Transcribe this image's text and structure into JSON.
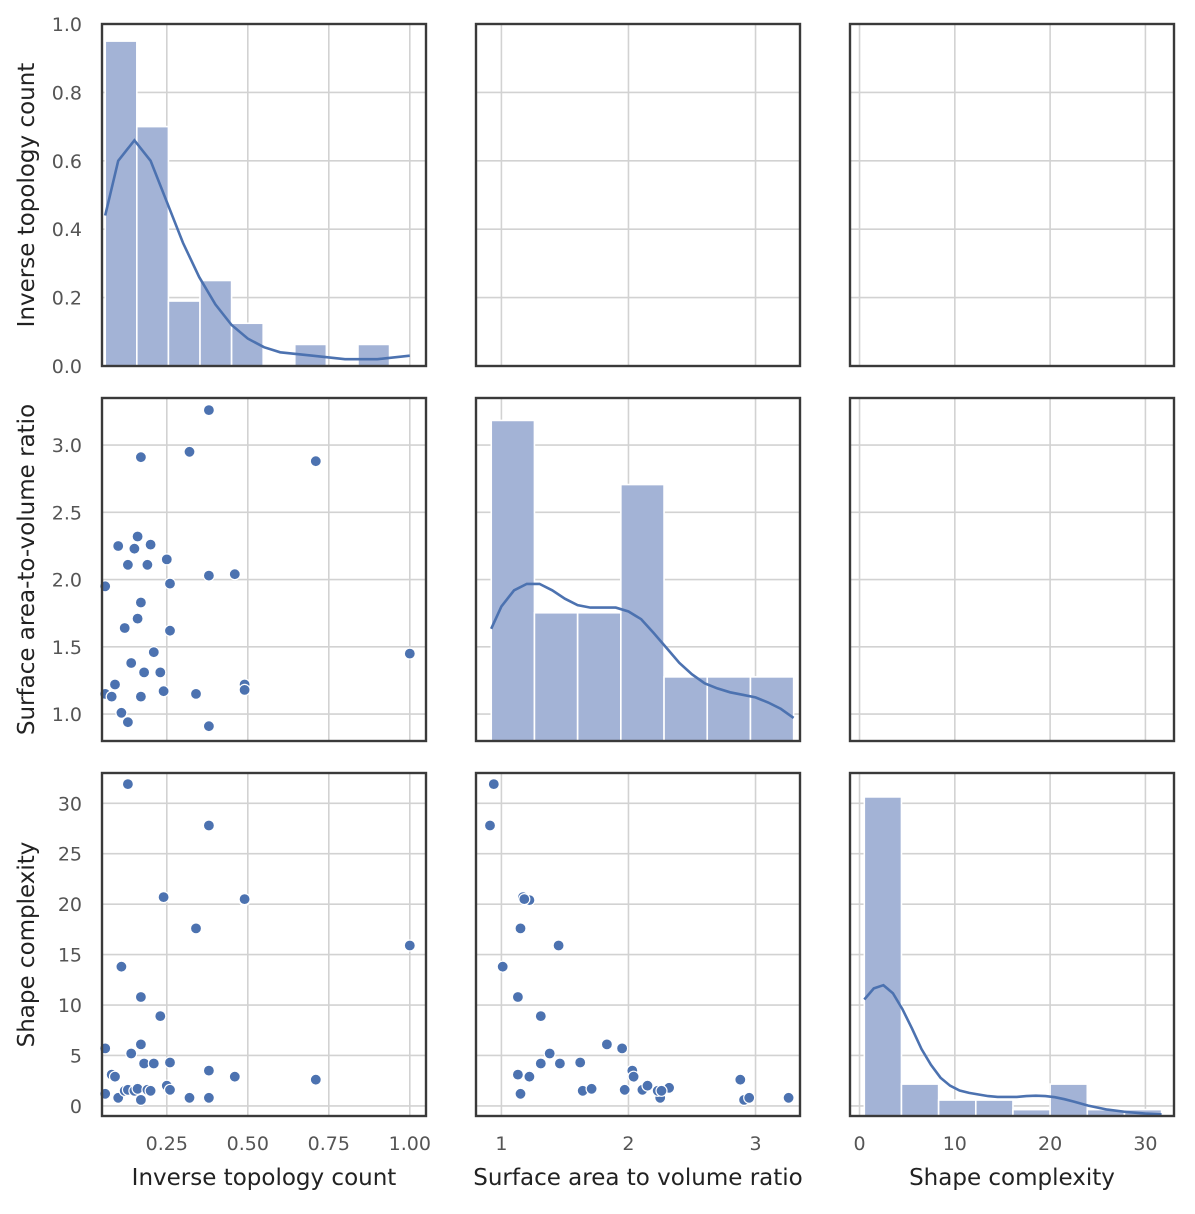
{
  "colors": {
    "series": "#4c72b0",
    "bar_fill": "#a3b3d6",
    "grid": "#d2d2d2",
    "frame": "#3a3a3a"
  },
  "variables": [
    {
      "key": "itc",
      "label": "Inverse topology count"
    },
    {
      "key": "sav",
      "label": "Surface area to volume ratio"
    },
    {
      "key": "sc",
      "label": "Shape complexity"
    }
  ],
  "row_labels": [
    "Inverse topology count",
    "Surface area-to-volume ratio",
    "Shape complexity"
  ],
  "chart_data": {
    "type": "scatter",
    "layout": "pairplot-lower-triangle",
    "grid": true,
    "axes": {
      "itc": {
        "range": [
          0.05,
          1.05
        ],
        "ticks": [
          0.25,
          0.5,
          0.75,
          1.0
        ],
        "tick_labels": [
          "0.25",
          "0.50",
          "0.75",
          "1.00"
        ],
        "diag_ylim": [
          0,
          1.0
        ],
        "diag_yticks": [
          0.0,
          0.2,
          0.4,
          0.6,
          0.8,
          1.0
        ],
        "diag_ytick_labels": [
          "0.0",
          "0.2",
          "0.4",
          "0.6",
          "0.8",
          "1.0"
        ]
      },
      "sav": {
        "range": [
          0.8,
          3.35
        ],
        "ticks": [
          1,
          2,
          3
        ],
        "tick_labels": [
          "1",
          "2",
          "3"
        ],
        "row_ticks": [
          1.0,
          1.5,
          2.0,
          2.5,
          3.0
        ],
        "row_tick_labels": [
          "1.0",
          "1.5",
          "2.0",
          "2.5",
          "3.0"
        ]
      },
      "sc": {
        "range": [
          -1,
          33
        ],
        "ticks": [
          0,
          10,
          20,
          30
        ],
        "tick_labels": [
          "0",
          "10",
          "20",
          "30"
        ],
        "row_ticks": [
          0,
          5,
          10,
          15,
          20,
          25,
          30
        ],
        "row_tick_labels": [
          "0",
          "5",
          "10",
          "15",
          "20",
          "25",
          "30"
        ]
      }
    },
    "histograms": {
      "itc": {
        "edges": [
          0.06,
          0.1575,
          0.255,
          0.3525,
          0.45,
          0.5475,
          0.645,
          0.7425,
          0.84,
          0.9375,
          1.035
        ],
        "heights": [
          0.95,
          0.7,
          0.19,
          0.25,
          0.125,
          0,
          0.063,
          0,
          0.063,
          0
        ],
        "kde": [
          [
            0.06,
            0.44
          ],
          [
            0.1,
            0.6
          ],
          [
            0.15,
            0.66
          ],
          [
            0.2,
            0.6
          ],
          [
            0.25,
            0.48
          ],
          [
            0.3,
            0.36
          ],
          [
            0.35,
            0.26
          ],
          [
            0.4,
            0.18
          ],
          [
            0.45,
            0.12
          ],
          [
            0.5,
            0.08
          ],
          [
            0.55,
            0.055
          ],
          [
            0.6,
            0.04
          ],
          [
            0.7,
            0.03
          ],
          [
            0.8,
            0.02
          ],
          [
            0.9,
            0.02
          ],
          [
            1.0,
            0.03
          ]
        ]
      },
      "sav": {
        "edges": [
          0.92,
          1.26,
          1.6,
          1.94,
          2.28,
          2.62,
          2.96,
          3.3
        ],
        "heights": [
          5,
          2,
          2,
          4,
          1,
          1,
          1
        ],
        "kde": [
          [
            0.92,
            1.75
          ],
          [
            1.0,
            2.1
          ],
          [
            1.1,
            2.35
          ],
          [
            1.2,
            2.45
          ],
          [
            1.3,
            2.45
          ],
          [
            1.4,
            2.35
          ],
          [
            1.5,
            2.22
          ],
          [
            1.6,
            2.12
          ],
          [
            1.7,
            2.08
          ],
          [
            1.8,
            2.08
          ],
          [
            1.9,
            2.08
          ],
          [
            2.0,
            2.02
          ],
          [
            2.1,
            1.9
          ],
          [
            2.2,
            1.68
          ],
          [
            2.3,
            1.45
          ],
          [
            2.4,
            1.22
          ],
          [
            2.5,
            1.04
          ],
          [
            2.6,
            0.9
          ],
          [
            2.7,
            0.82
          ],
          [
            2.8,
            0.76
          ],
          [
            2.9,
            0.72
          ],
          [
            3.0,
            0.68
          ],
          [
            3.1,
            0.6
          ],
          [
            3.2,
            0.5
          ],
          [
            3.3,
            0.36
          ]
        ],
        "ymax": 5.35
      },
      "sc": {
        "edges": [
          0.5,
          4.4,
          8.3,
          12.2,
          16.1,
          20.0,
          23.9,
          27.8,
          31.7
        ],
        "heights": [
          20,
          2,
          1,
          1,
          0.4,
          2,
          0.4,
          0.4
        ],
        "kde": [
          [
            0.5,
            7.3
          ],
          [
            1.5,
            8.0
          ],
          [
            2.5,
            8.2
          ],
          [
            3.5,
            7.7
          ],
          [
            4.5,
            6.7
          ],
          [
            5.5,
            5.5
          ],
          [
            6.5,
            4.2
          ],
          [
            7.5,
            3.2
          ],
          [
            8.5,
            2.4
          ],
          [
            9.5,
            1.9
          ],
          [
            10.5,
            1.6
          ],
          [
            11.5,
            1.45
          ],
          [
            12.5,
            1.35
          ],
          [
            13.5,
            1.25
          ],
          [
            14.5,
            1.2
          ],
          [
            15.5,
            1.2
          ],
          [
            16.5,
            1.2
          ],
          [
            17.5,
            1.25
          ],
          [
            18.5,
            1.27
          ],
          [
            19.5,
            1.25
          ],
          [
            20.5,
            1.18
          ],
          [
            21.5,
            1.05
          ],
          [
            22.5,
            0.9
          ],
          [
            24,
            0.65
          ],
          [
            26,
            0.4
          ],
          [
            28,
            0.25
          ],
          [
            30,
            0.15
          ],
          [
            31.7,
            0.1
          ]
        ],
        "ymax": 21.5
      }
    },
    "points": [
      {
        "itc": 0.06,
        "sav": 1.95,
        "sc": 5.7
      },
      {
        "itc": 0.06,
        "sav": 1.15,
        "sc": 1.2
      },
      {
        "itc": 0.08,
        "sav": 1.13,
        "sc": 3.1
      },
      {
        "itc": 0.09,
        "sav": 1.22,
        "sc": 2.9
      },
      {
        "itc": 0.1,
        "sav": 2.25,
        "sc": 0.8
      },
      {
        "itc": 0.11,
        "sav": 1.01,
        "sc": 13.8
      },
      {
        "itc": 0.12,
        "sav": 1.64,
        "sc": 1.5
      },
      {
        "itc": 0.13,
        "sav": 2.11,
        "sc": 1.6
      },
      {
        "itc": 0.13,
        "sav": 0.94,
        "sc": 31.9
      },
      {
        "itc": 0.14,
        "sav": 1.38,
        "sc": 5.2
      },
      {
        "itc": 0.15,
        "sav": 2.23,
        "sc": 1.5
      },
      {
        "itc": 0.16,
        "sav": 2.32,
        "sc": 1.8
      },
      {
        "itc": 0.16,
        "sav": 1.71,
        "sc": 1.7
      },
      {
        "itc": 0.17,
        "sav": 1.83,
        "sc": 6.1
      },
      {
        "itc": 0.17,
        "sav": 2.91,
        "sc": 0.6
      },
      {
        "itc": 0.17,
        "sav": 1.13,
        "sc": 10.8
      },
      {
        "itc": 0.18,
        "sav": 1.31,
        "sc": 4.2
      },
      {
        "itc": 0.19,
        "sav": 2.11,
        "sc": 1.6
      },
      {
        "itc": 0.2,
        "sav": 2.26,
        "sc": 1.5
      },
      {
        "itc": 0.21,
        "sav": 1.46,
        "sc": 4.2
      },
      {
        "itc": 0.23,
        "sav": 1.31,
        "sc": 8.9
      },
      {
        "itc": 0.24,
        "sav": 1.17,
        "sc": 20.7
      },
      {
        "itc": 0.25,
        "sav": 2.15,
        "sc": 2.0
      },
      {
        "itc": 0.26,
        "sav": 1.97,
        "sc": 1.6
      },
      {
        "itc": 0.26,
        "sav": 1.62,
        "sc": 4.3
      },
      {
        "itc": 0.32,
        "sav": 2.95,
        "sc": 0.8
      },
      {
        "itc": 0.34,
        "sav": 1.15,
        "sc": 17.6
      },
      {
        "itc": 0.38,
        "sav": 3.26,
        "sc": 0.8
      },
      {
        "itc": 0.38,
        "sav": 2.03,
        "sc": 3.5
      },
      {
        "itc": 0.38,
        "sav": 0.91,
        "sc": 27.8
      },
      {
        "itc": 0.46,
        "sav": 2.04,
        "sc": 2.9
      },
      {
        "itc": 0.49,
        "sav": 1.22,
        "sc": 20.4
      },
      {
        "itc": 0.49,
        "sav": 1.18,
        "sc": 20.5
      },
      {
        "itc": 0.71,
        "sav": 2.88,
        "sc": 2.6
      },
      {
        "itc": 1.0,
        "sav": 1.45,
        "sc": 15.9
      }
    ]
  }
}
